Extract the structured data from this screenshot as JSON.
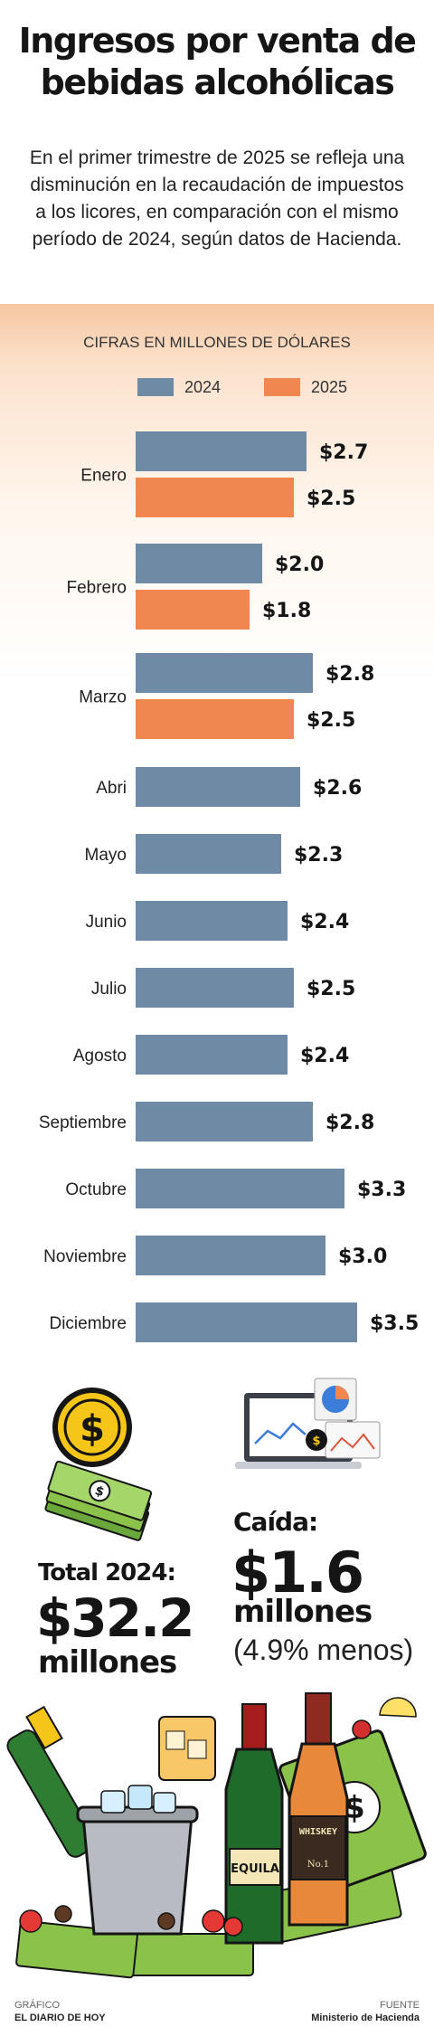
{
  "header": {
    "title": "Ingresos por venta de bebidas alcohólicas",
    "subtitle": "En el primer trimestre de 2025 se refleja una disminución en la recaudación de impuestos a los licores, en comparación con el mismo período de 2024, según datos de Hacienda."
  },
  "chart_data": {
    "type": "bar",
    "orientation": "horizontal",
    "subtitle": "CIFRAS EN MILLONES DE DÓLARES",
    "legend_placement": "top",
    "grid": false,
    "xlim": [
      0,
      3.5
    ],
    "categories": [
      "Enero",
      "Febrero",
      "Marzo",
      "Abri",
      "Mayo",
      "Junio",
      "Julio",
      "Agosto",
      "Septiembre",
      "Octubre",
      "Noviembre",
      "Diciembre"
    ],
    "series": [
      {
        "name": "2024",
        "color": "#6e8aa5",
        "values": [
          2.7,
          2.0,
          2.8,
          2.6,
          2.3,
          2.4,
          2.5,
          2.4,
          2.8,
          3.3,
          3.0,
          3.5
        ],
        "labels": [
          "$2.7",
          "$2.0",
          "$2.8",
          "$2.6",
          "$2.3",
          "$2.4",
          "$2.5",
          "$2.4",
          "$2.8",
          "$3.3",
          "$3.0",
          "$3.5"
        ]
      },
      {
        "name": "2025",
        "color": "#f08650",
        "values": [
          2.5,
          1.8,
          2.5,
          null,
          null,
          null,
          null,
          null,
          null,
          null,
          null,
          null
        ],
        "labels": [
          "$2.5",
          "$1.8",
          "$2.5",
          null,
          null,
          null,
          null,
          null,
          null,
          null,
          null,
          null
        ]
      }
    ]
  },
  "summary": {
    "total_label": "Total 2024:",
    "total_value": "$32.2",
    "total_unit": "millones",
    "drop_label": "Caída:",
    "drop_value": "$1.6",
    "drop_unit": "millones",
    "drop_pct": "(4.9% menos)"
  },
  "illustrations": {
    "coin_symbol": "$",
    "bottle_label": "EQUILA",
    "whiskey_label": "WHISKEY",
    "whiskey_small": "No.1"
  },
  "footer": {
    "credit_key": "GRÁFICO",
    "credit_value": "EL DIARIO DE HOY",
    "source_key": "FUENTE",
    "source_value": "Ministerio de Hacienda"
  },
  "colors": {
    "bar_2024": "#6e8aa5",
    "bar_2025": "#f08650",
    "money_green": "#8bc34a",
    "coin_yellow": "#f5c518"
  }
}
